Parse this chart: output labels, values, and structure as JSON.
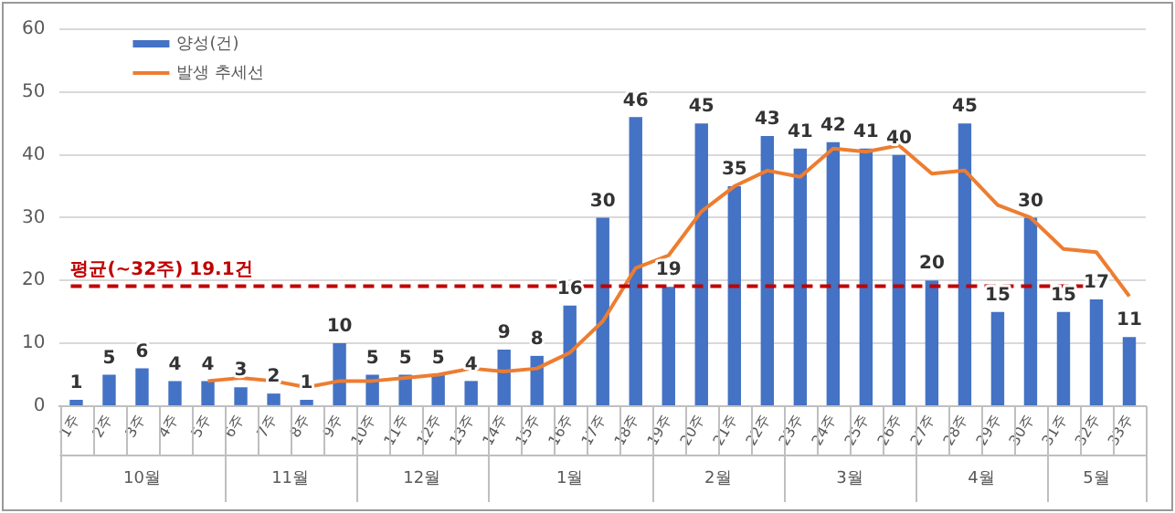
{
  "chart_data": {
    "type": "bar",
    "categories": [
      "1주",
      "2주",
      "3주",
      "4주",
      "5주",
      "6주",
      "7주",
      "8주",
      "9주",
      "10주",
      "11주",
      "12주",
      "13주",
      "14주",
      "15주",
      "16주",
      "17주",
      "18주",
      "19주",
      "20주",
      "21주",
      "22주",
      "23주",
      "24주",
      "25주",
      "26주",
      "27주",
      "28주",
      "29주",
      "30주",
      "31주",
      "32주",
      "33주"
    ],
    "series": [
      {
        "name": "양성(건)",
        "color": "#4472c4",
        "values": [
          1,
          5,
          6,
          4,
          4,
          3,
          2,
          1,
          10,
          5,
          5,
          5,
          4,
          9,
          8,
          16,
          30,
          46,
          19,
          45,
          35,
          43,
          41,
          42,
          41,
          40,
          20,
          45,
          15,
          30,
          15,
          17,
          11
        ],
        "value_labels": [
          "1",
          "5",
          "6",
          "4",
          "4",
          "3",
          "2",
          "1",
          "10",
          "5",
          "5",
          "5",
          "4",
          "9",
          "8",
          "16",
          "30",
          "46",
          "19",
          "45",
          "35",
          "43",
          "41",
          "42",
          "41",
          "40",
          "20",
          "45",
          "15",
          "30",
          "15",
          "17",
          "11"
        ]
      },
      {
        "name": "발생 추세선",
        "type": "line",
        "color": "#ed7d31",
        "values": [
          null,
          null,
          null,
          null,
          4,
          4.5,
          4,
          3,
          4,
          4,
          4.5,
          5,
          6,
          5.5,
          6,
          8.5,
          13.5,
          22,
          24,
          31,
          35,
          37.5,
          36.5,
          41,
          40.5,
          41.5,
          37,
          37.5,
          32,
          30,
          25,
          24.5,
          17.5
        ]
      }
    ],
    "ylim": [
      0,
      60
    ],
    "yticks": [
      0,
      10,
      20,
      30,
      40,
      50,
      60
    ],
    "grid": "y",
    "legend": "top left",
    "marker": "none",
    "ref_lines": [
      {
        "axis": "y",
        "value": 19.1,
        "label": "평균(~32주) 19.1건",
        "color": "#c00000",
        "line_style": "dashed"
      }
    ],
    "annotations": [
      "10월",
      "11월",
      "12월",
      "1월",
      "2월",
      "3월",
      "4월",
      "5월"
    ]
  }
}
